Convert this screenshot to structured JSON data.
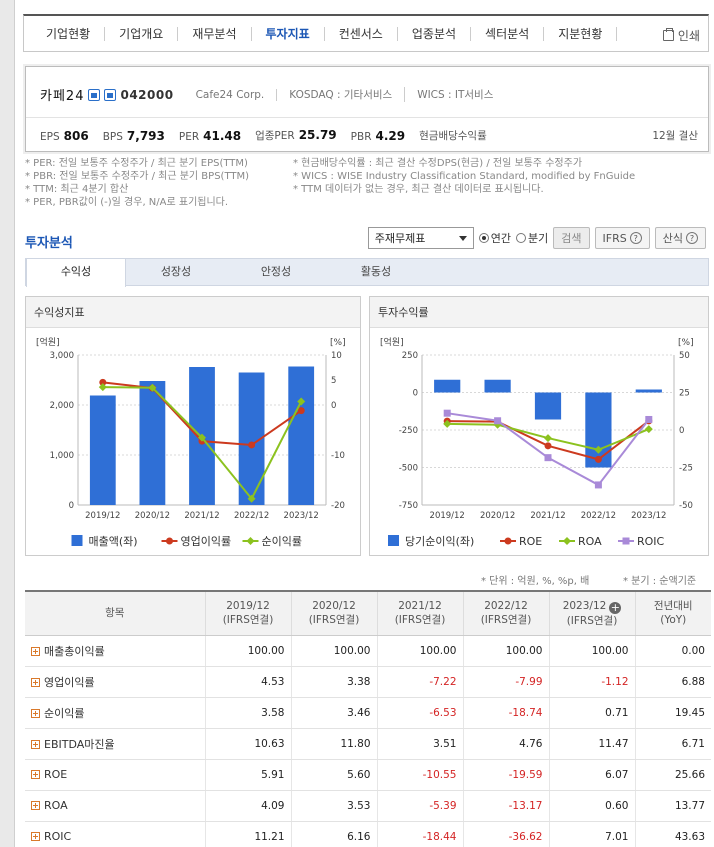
{
  "nav": {
    "tabs": [
      "기업현황",
      "기업개요",
      "재무분석",
      "투자지표",
      "컨센서스",
      "업종분석",
      "섹터분석",
      "지분현황"
    ],
    "active_index": 3,
    "print_label": "인쇄"
  },
  "company": {
    "name": "카페24",
    "code": "042000",
    "english_name": "Cafe24 Corp.",
    "market": "KOSDAQ : 기타서비스",
    "wics": "WICS : IT서비스",
    "stats": [
      {
        "label": "EPS",
        "value": "806"
      },
      {
        "label": "BPS",
        "value": "7,793"
      },
      {
        "label": "PER",
        "value": "41.48"
      },
      {
        "label": "업종PER",
        "value": "25.79"
      },
      {
        "label": "PBR",
        "value": "4.29"
      },
      {
        "label": "현금배당수익률",
        "value": ""
      }
    ],
    "settlement": "12월 결산"
  },
  "notes": {
    "left": [
      "* PER: 전일 보통주 수정주가 / 최근 분기 EPS(TTM)",
      "* PBR: 전일 보통주 수정주가 / 최근 분기 BPS(TTM)",
      "* TTM: 최근 4분기 합산",
      "* PER, PBR값이 (-)일 경우, N/A로 표기됩니다."
    ],
    "right": [
      "* 현금배당수익률 : 최근 결산 수정DPS(현금) / 전일 보통주 수정주가",
      "* WICS : WISE Industry Classification Standard, modified by FnGuide",
      "* TTM 데이터가 없는 경우, 최근 결산 데이터로 표시됩니다."
    ]
  },
  "section": {
    "title": "투자분석",
    "select_value": "주재무제표",
    "radio_annual": "연간",
    "radio_quarter": "분기",
    "search_label": "검색",
    "ifrs_label": "IFRS",
    "formula_label": "산식"
  },
  "subtabs": [
    "수익성",
    "성장성",
    "안정성",
    "활동성"
  ],
  "subtab_active": 0,
  "colors": {
    "bar": "#2f6fd6",
    "red": "#cc3a1f",
    "green": "#8cc21f",
    "purple": "#a98ad8",
    "negative_text": "#d42424"
  },
  "chart_data": [
    {
      "type": "bar",
      "title": "수익성지표",
      "unit_left": "[억원]",
      "unit_right": "[%]",
      "categories": [
        "2019/12",
        "2020/12",
        "2021/12",
        "2022/12",
        "2023/12"
      ],
      "ylim_left": [
        0,
        3000
      ],
      "yticks_left": [
        "0",
        "1,000",
        "2,000",
        "3,000"
      ],
      "ylim_right": [
        -20,
        10
      ],
      "yticks_right": [
        "-20",
        "-10",
        "0",
        "5",
        "10"
      ],
      "series": [
        {
          "name": "매출액(좌)",
          "kind": "bar",
          "axis": "left",
          "values": [
            2190,
            2480,
            2760,
            2650,
            2770
          ]
        },
        {
          "name": "영업이익률",
          "kind": "line",
          "axis": "right",
          "values": [
            4.53,
            3.38,
            -7.22,
            -7.99,
            -1.12
          ]
        },
        {
          "name": "순이익률",
          "kind": "line",
          "axis": "right",
          "values": [
            3.58,
            3.46,
            -6.53,
            -18.74,
            0.71
          ]
        }
      ]
    },
    {
      "type": "bar",
      "title": "투자수익률",
      "unit_left": "[억원]",
      "unit_right": "[%]",
      "categories": [
        "2019/12",
        "2020/12",
        "2021/12",
        "2022/12",
        "2023/12"
      ],
      "ylim_left": [
        -750,
        250
      ],
      "yticks_left": [
        "-750",
        "-500",
        "-250",
        "0",
        "250"
      ],
      "ylim_right": [
        -50,
        50
      ],
      "yticks_right": [
        "-50",
        "-25",
        "0",
        "25",
        "50"
      ],
      "series": [
        {
          "name": "당기순이익(좌)",
          "kind": "bar",
          "axis": "left",
          "values": [
            85,
            85,
            -180,
            -500,
            20
          ]
        },
        {
          "name": "ROE",
          "kind": "line",
          "axis": "right",
          "values": [
            5.91,
            5.6,
            -10.55,
            -19.59,
            6.07
          ]
        },
        {
          "name": "ROA",
          "kind": "line",
          "axis": "right",
          "values": [
            4.09,
            3.53,
            -5.39,
            -13.17,
            0.6
          ]
        },
        {
          "name": "ROIC",
          "kind": "line",
          "axis": "right",
          "values": [
            11.21,
            6.16,
            -18.44,
            -36.62,
            7.01
          ]
        }
      ]
    }
  ],
  "unit_note_left": "* 단위 : 억원, %, %p, 배",
  "unit_note_right": "* 분기 : 순액기준",
  "table": {
    "header_item": "항목",
    "columns": [
      {
        "year": "2019/12",
        "basis": "(IFRS연결)"
      },
      {
        "year": "2020/12",
        "basis": "(IFRS연결)"
      },
      {
        "year": "2021/12",
        "basis": "(IFRS연결)"
      },
      {
        "year": "2022/12",
        "basis": "(IFRS연결)"
      },
      {
        "year": "2023/12",
        "basis": "(IFRS연결)"
      },
      {
        "year": "전년대비",
        "basis": "(YoY)"
      }
    ],
    "rows": [
      {
        "label": "매출총이익률",
        "values": [
          "100.00",
          "100.00",
          "100.00",
          "100.00",
          "100.00",
          "0.00"
        ]
      },
      {
        "label": "영업이익률",
        "values": [
          "4.53",
          "3.38",
          "-7.22",
          "-7.99",
          "-1.12",
          "6.88"
        ]
      },
      {
        "label": "순이익률",
        "values": [
          "3.58",
          "3.46",
          "-6.53",
          "-18.74",
          "0.71",
          "19.45"
        ]
      },
      {
        "label": "EBITDA마진율",
        "values": [
          "10.63",
          "11.80",
          "3.51",
          "4.76",
          "11.47",
          "6.71"
        ]
      },
      {
        "label": "ROE",
        "values": [
          "5.91",
          "5.60",
          "-10.55",
          "-19.59",
          "6.07",
          "25.66"
        ]
      },
      {
        "label": "ROA",
        "values": [
          "4.09",
          "3.53",
          "-5.39",
          "-13.17",
          "0.60",
          "13.77"
        ]
      },
      {
        "label": "ROIC",
        "values": [
          "11.21",
          "6.16",
          "-18.44",
          "-36.62",
          "7.01",
          "43.63"
        ]
      }
    ]
  }
}
